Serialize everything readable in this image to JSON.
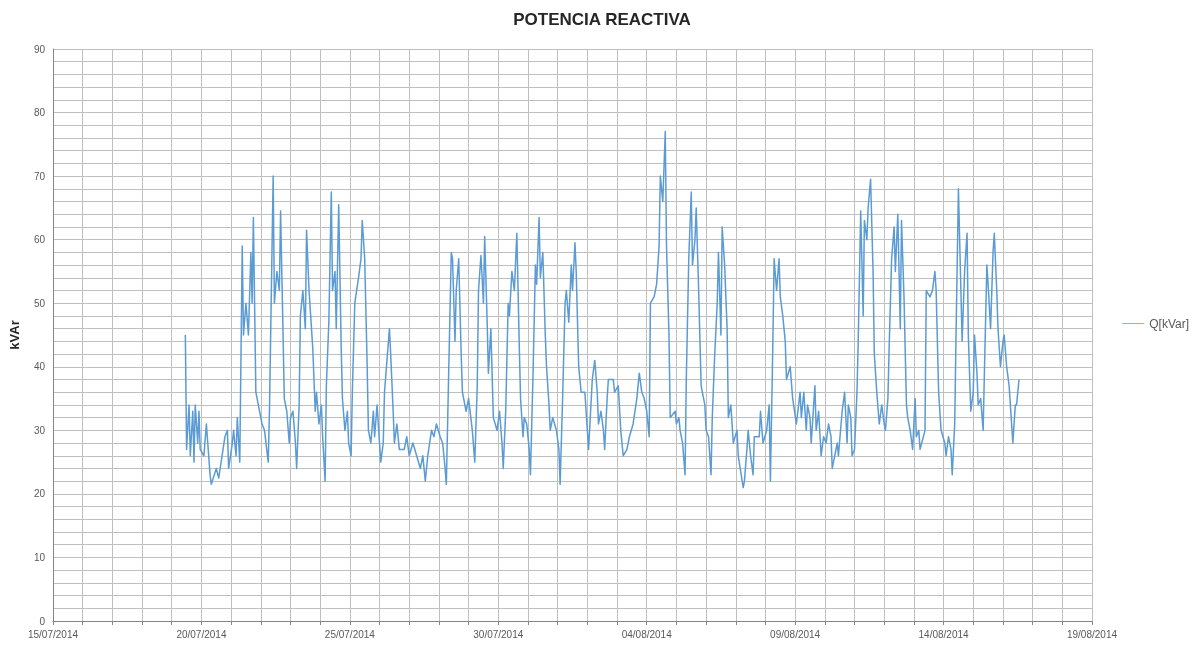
{
  "chart_data": {
    "type": "line",
    "title": "POTENCIA REACTIVA",
    "ylabel": "kVAr",
    "legend": "right",
    "grid": true,
    "marker": "none",
    "line_style": "solid",
    "xlim": [
      "2014-07-15",
      "2014-08-19"
    ],
    "xticks": [
      {
        "value": "2014-07-15",
        "label": "15/07/2014"
      },
      {
        "value": "2014-07-16",
        "label": null
      },
      {
        "value": "2014-07-17",
        "label": null
      },
      {
        "value": "2014-07-18",
        "label": null
      },
      {
        "value": "2014-07-19",
        "label": null
      },
      {
        "value": "2014-07-20",
        "label": "20/07/2014"
      },
      {
        "value": "2014-07-21",
        "label": null
      },
      {
        "value": "2014-07-22",
        "label": null
      },
      {
        "value": "2014-07-23",
        "label": null
      },
      {
        "value": "2014-07-24",
        "label": null
      },
      {
        "value": "2014-07-25",
        "label": "25/07/2014"
      },
      {
        "value": "2014-07-26",
        "label": null
      },
      {
        "value": "2014-07-27",
        "label": null
      },
      {
        "value": "2014-07-28",
        "label": null
      },
      {
        "value": "2014-07-29",
        "label": null
      },
      {
        "value": "2014-07-30",
        "label": "30/07/2014"
      },
      {
        "value": "2014-07-31",
        "label": null
      },
      {
        "value": "2014-08-01",
        "label": null
      },
      {
        "value": "2014-08-02",
        "label": null
      },
      {
        "value": "2014-08-03",
        "label": null
      },
      {
        "value": "2014-08-04",
        "label": "04/08/2014"
      },
      {
        "value": "2014-08-05",
        "label": null
      },
      {
        "value": "2014-08-06",
        "label": null
      },
      {
        "value": "2014-08-07",
        "label": null
      },
      {
        "value": "2014-08-08",
        "label": null
      },
      {
        "value": "2014-08-09",
        "label": "09/08/2014"
      },
      {
        "value": "2014-08-10",
        "label": null
      },
      {
        "value": "2014-08-11",
        "label": null
      },
      {
        "value": "2014-08-12",
        "label": null
      },
      {
        "value": "2014-08-13",
        "label": null
      },
      {
        "value": "2014-08-14",
        "label": "14/08/2014"
      },
      {
        "value": "2014-08-15",
        "label": null
      },
      {
        "value": "2014-08-16",
        "label": null
      },
      {
        "value": "2014-08-17",
        "label": null
      },
      {
        "value": "2014-08-18",
        "label": null
      },
      {
        "value": "2014-08-19",
        "label": "19/08/2014"
      }
    ],
    "ylim": [
      0,
      90
    ],
    "yticks": [
      0,
      {
        "value": 2,
        "label": null
      },
      {
        "value": 4,
        "label": null
      },
      {
        "value": 6,
        "label": null
      },
      {
        "value": 8,
        "label": null
      },
      10,
      {
        "value": 12,
        "label": null
      },
      {
        "value": 14,
        "label": null
      },
      {
        "value": 16,
        "label": null
      },
      {
        "value": 18,
        "label": null
      },
      20,
      {
        "value": 22,
        "label": null
      },
      {
        "value": 24,
        "label": null
      },
      {
        "value": 26,
        "label": null
      },
      {
        "value": 28,
        "label": null
      },
      30,
      {
        "value": 32,
        "label": null
      },
      {
        "value": 34,
        "label": null
      },
      {
        "value": 36,
        "label": null
      },
      {
        "value": 38,
        "label": null
      },
      40,
      {
        "value": 42,
        "label": null
      },
      {
        "value": 44,
        "label": null
      },
      {
        "value": 46,
        "label": null
      },
      {
        "value": 48,
        "label": null
      },
      50,
      {
        "value": 52,
        "label": null
      },
      {
        "value": 54,
        "label": null
      },
      {
        "value": 56,
        "label": null
      },
      {
        "value": 58,
        "label": null
      },
      60,
      {
        "value": 62,
        "label": null
      },
      {
        "value": 64,
        "label": null
      },
      {
        "value": 66,
        "label": null
      },
      {
        "value": 68,
        "label": null
      },
      70,
      {
        "value": 72,
        "label": null
      },
      {
        "value": 74,
        "label": null
      },
      {
        "value": 76,
        "label": null
      },
      {
        "value": 78,
        "label": null
      },
      80,
      {
        "value": 82,
        "label": null
      },
      {
        "value": 84,
        "label": null
      },
      {
        "value": 86,
        "label": null
      },
      {
        "value": 88,
        "label": null
      },
      90
    ],
    "series": [
      {
        "name": "Q[kVar]",
        "color": "#5b9bd5",
        "x": [
          "2014-07-19T11:00",
          "2014-07-19T12:00",
          "2014-07-19T14:00",
          "2014-07-19T15:00",
          "2014-07-19T17:00",
          "2014-07-19T18:00",
          "2014-07-19T19:00",
          "2014-07-19T21:00",
          "2014-07-19T22:00",
          "2014-07-19T23:00",
          "2014-07-20T02:00",
          "2014-07-20T04:00",
          "2014-07-20T07:00",
          "2014-07-20T08:00",
          "2014-07-20T12:00",
          "2014-07-20T14:00",
          "2014-07-20T19:00",
          "2014-07-20T21:00",
          "2014-07-20T22:00",
          "2014-07-21T01:00",
          "2014-07-21T02:00",
          "2014-07-21T04:00",
          "2014-07-21T05:00",
          "2014-07-21T07:00",
          "2014-07-21T09:00",
          "2014-07-21T10:00",
          "2014-07-21T12:00",
          "2014-07-21T14:00",
          "2014-07-21T16:00",
          "2014-07-21T17:00",
          "2014-07-21T18:00",
          "2014-07-21T20:00",
          "2014-07-21T22:00",
          "2014-07-22T01:00",
          "2014-07-22T03:00",
          "2014-07-22T06:00",
          "2014-07-22T07:00",
          "2014-07-22T10:00",
          "2014-07-22T11:00",
          "2014-07-22T13:00",
          "2014-07-22T15:00",
          "2014-07-22T16:00",
          "2014-07-22T18:00",
          "2014-07-22T19:00",
          "2014-07-22T21:00",
          "2014-07-22T23:00",
          "2014-07-23T00:00",
          "2014-07-23T02:00",
          "2014-07-23T04:00",
          "2014-07-23T05:00",
          "2014-07-23T07:00",
          "2014-07-23T08:00",
          "2014-07-23T10:00",
          "2014-07-23T12:00",
          "2014-07-23T13:00",
          "2014-07-23T15:00",
          "2014-07-23T18:00",
          "2014-07-23T20:00",
          "2014-07-23T21:00",
          "2014-07-23T23:00",
          "2014-07-24T01:00",
          "2014-07-24T02:00",
          "2014-07-24T04:00",
          "2014-07-24T05:00",
          "2014-07-24T07:00",
          "2014-07-24T09:00",
          "2014-07-24T10:00",
          "2014-07-24T12:00",
          "2014-07-24T13:00",
          "2014-07-24T15:00",
          "2014-07-24T17:00",
          "2014-07-24T18:00",
          "2014-07-24T20:00",
          "2014-07-24T22:00",
          "2014-07-24T23:00",
          "2014-07-25T01:00",
          "2014-07-25T02:00",
          "2014-07-25T04:00",
          "2014-07-25T07:00",
          "2014-07-25T09:00",
          "2014-07-25T10:00",
          "2014-07-25T12:00",
          "2014-07-25T14:00",
          "2014-07-25T15:00",
          "2014-07-25T17:00",
          "2014-07-25T19:00",
          "2014-07-25T20:00",
          "2014-07-25T22:00",
          "2014-07-26T01:00",
          "2014-07-26T03:00",
          "2014-07-26T04:00",
          "2014-07-26T08:00",
          "2014-07-26T09:00",
          "2014-07-26T11:00",
          "2014-07-26T12:00",
          "2014-07-26T14:00",
          "2014-07-26T16:00",
          "2014-07-26T20:00",
          "2014-07-26T22:00",
          "2014-07-27T00:00",
          "2014-07-27T03:00",
          "2014-07-27T06:00",
          "2014-07-27T09:00",
          "2014-07-27T11:00",
          "2014-07-27T13:00",
          "2014-07-27T15:00",
          "2014-07-27T18:00",
          "2014-07-27T20:00",
          "2014-07-27T22:00",
          "2014-07-28T01:00",
          "2014-07-28T03:00",
          "2014-07-28T05:00",
          "2014-07-28T06:00",
          "2014-07-28T08:00",
          "2014-07-28T10:00",
          "2014-07-28T11:00",
          "2014-07-28T13:00",
          "2014-07-28T14:00",
          "2014-07-28T16:00",
          "2014-07-28T18:00",
          "2014-07-28T19:00",
          "2014-07-28T22:00",
          "2014-07-29T00:00",
          "2014-07-29T03:00",
          "2014-07-29T05:00",
          "2014-07-29T07:00",
          "2014-07-29T08:00",
          "2014-07-29T10:00",
          "2014-07-29T12:00",
          "2014-07-29T13:00",
          "2014-07-29T15:00",
          "2014-07-29T16:00",
          "2014-07-29T18:00",
          "2014-07-29T20:00",
          "2014-07-29T23:00",
          "2014-07-30T01:00",
          "2014-07-30T03:00",
          "2014-07-30T04:00",
          "2014-07-30T06:00",
          "2014-07-30T08:00",
          "2014-07-30T09:00",
          "2014-07-30T11:00",
          "2014-07-30T13:00",
          "2014-07-30T15:00",
          "2014-07-30T17:00",
          "2014-07-30T18:00",
          "2014-07-30T20:00",
          "2014-07-30T21:00",
          "2014-07-30T23:00",
          "2014-07-31T01:00",
          "2014-07-31T02:00",
          "2014-07-31T04:00",
          "2014-07-31T06:00",
          "2014-07-31T07:00",
          "2014-07-31T09:00",
          "2014-07-31T10:00",
          "2014-07-31T12:00",
          "2014-07-31T14:00",
          "2014-07-31T15:00",
          "2014-07-31T17:00",
          "2014-07-31T18:00",
          "2014-07-31T20:00",
          "2014-07-31T23:00",
          "2014-08-01T01:00",
          "2014-08-01T02:00",
          "2014-08-01T04:00",
          "2014-08-01T06:00",
          "2014-08-01T07:00",
          "2014-08-01T09:00",
          "2014-08-01T11:00",
          "2014-08-01T12:00",
          "2014-08-01T14:00",
          "2014-08-01T15:00",
          "2014-08-01T17:00",
          "2014-08-01T19:00",
          "2014-08-01T22:00",
          "2014-08-02T00:00",
          "2014-08-02T01:00",
          "2014-08-02T04:00",
          "2014-08-02T06:00",
          "2014-08-02T08:00",
          "2014-08-02T09:00",
          "2014-08-02T11:00",
          "2014-08-02T13:00",
          "2014-08-02T14:00",
          "2014-08-02T16:00",
          "2014-08-02T17:00",
          "2014-08-02T21:00",
          "2014-08-02T22:00",
          "2014-08-03T01:00",
          "2014-08-03T03:00",
          "2014-08-03T05:00",
          "2014-08-03T08:00",
          "2014-08-03T10:00",
          "2014-08-03T13:00",
          "2014-08-03T16:00",
          "2014-08-03T18:00",
          "2014-08-03T20:00",
          "2014-08-03T22:00",
          "2014-08-04T00:00",
          "2014-08-04T02:00",
          "2014-08-04T03:00",
          "2014-08-04T06:00",
          "2014-08-04T08:00",
          "2014-08-04T10:00",
          "2014-08-04T11:00",
          "2014-08-04T13:00",
          "2014-08-04T15:00",
          "2014-08-04T16:00",
          "2014-08-04T18:00",
          "2014-08-04T19:00",
          "2014-08-04T23:00",
          "2014-08-05T00:00",
          "2014-08-05T02:00",
          "2014-08-05T03:00",
          "2014-08-05T05:00",
          "2014-08-05T07:00",
          "2014-08-05T08:00",
          "2014-08-05T10:00",
          "2014-08-05T12:00",
          "2014-08-05T13:00",
          "2014-08-05T15:00",
          "2014-08-05T16:00",
          "2014-08-05T18:00",
          "2014-08-05T20:00",
          "2014-08-05T23:00",
          "2014-08-06T00:00",
          "2014-08-06T02:00",
          "2014-08-06T04:00",
          "2014-08-06T05:00",
          "2014-08-06T07:00",
          "2014-08-06T09:00",
          "2014-08-06T10:00",
          "2014-08-06T12:00",
          "2014-08-06T13:00",
          "2014-08-06T15:00",
          "2014-08-06T17:00",
          "2014-08-06T18:00",
          "2014-08-06T20:00",
          "2014-08-06T22:00",
          "2014-08-07T01:00",
          "2014-08-07T02:00",
          "2014-08-07T06:00",
          "2014-08-07T07:00",
          "2014-08-07T09:00",
          "2014-08-07T10:00",
          "2014-08-07T12:00",
          "2014-08-07T14:00",
          "2014-08-07T15:00",
          "2014-08-07T19:00",
          "2014-08-07T20:00",
          "2014-08-07T22:00",
          "2014-08-08T01:00",
          "2014-08-08T03:00",
          "2014-08-08T04:00",
          "2014-08-08T06:00",
          "2014-08-08T07:00",
          "2014-08-08T09:00",
          "2014-08-08T11:00",
          "2014-08-08T12:00",
          "2014-08-08T14:00",
          "2014-08-08T16:00",
          "2014-08-08T17:00",
          "2014-08-08T20:00",
          "2014-08-08T22:00",
          "2014-08-09T01:00",
          "2014-08-09T04:00",
          "2014-08-09T05:00",
          "2014-08-09T07:00",
          "2014-08-09T09:00",
          "2014-08-09T10:00",
          "2014-08-09T12:00",
          "2014-08-09T13:00",
          "2014-08-09T16:00",
          "2014-08-09T17:00",
          "2014-08-09T19:00",
          "2014-08-09T21:00",
          "2014-08-09T23:00",
          "2014-08-10T01:00",
          "2014-08-10T03:00",
          "2014-08-10T05:00",
          "2014-08-10T06:00",
          "2014-08-10T10:00",
          "2014-08-10T11:00",
          "2014-08-10T14:00",
          "2014-08-10T16:00",
          "2014-08-10T18:00",
          "2014-08-10T19:00",
          "2014-08-10T21:00",
          "2014-08-10T22:00",
          "2014-08-11T00:00",
          "2014-08-11T02:00",
          "2014-08-11T03:00",
          "2014-08-11T05:00",
          "2014-08-11T07:00",
          "2014-08-11T08:00",
          "2014-08-11T10:00",
          "2014-08-11T11:00",
          "2014-08-11T13:00",
          "2014-08-11T15:00",
          "2014-08-11T16:00",
          "2014-08-11T18:00",
          "2014-08-11T20:00",
          "2014-08-11T22:00",
          "2014-08-12T00:00",
          "2014-08-12T01:00",
          "2014-08-12T03:00",
          "2014-08-12T04:00",
          "2014-08-12T06:00",
          "2014-08-12T08:00",
          "2014-08-12T09:00",
          "2014-08-12T11:00",
          "2014-08-12T13:00",
          "2014-08-12T14:00",
          "2014-08-12T16:00",
          "2014-08-12T18:00",
          "2014-08-12T19:00",
          "2014-08-12T21:00",
          "2014-08-12T23:00",
          "2014-08-13T01:00",
          "2014-08-13T02:00",
          "2014-08-13T04:00",
          "2014-08-13T05:00",
          "2014-08-13T09:00",
          "2014-08-13T10:00",
          "2014-08-13T13:00",
          "2014-08-13T15:00",
          "2014-08-13T17:00",
          "2014-08-13T18:00",
          "2014-08-13T20:00",
          "2014-08-13T22:00",
          "2014-08-14T01:00",
          "2014-08-14T02:00",
          "2014-08-14T04:00",
          "2014-08-14T06:00",
          "2014-08-14T07:00",
          "2014-08-14T09:00",
          "2014-08-14T10:00",
          "2014-08-14T12:00",
          "2014-08-14T14:00",
          "2014-08-14T15:00",
          "2014-08-14T17:00",
          "2014-08-14T19:00",
          "2014-08-14T20:00",
          "2014-08-14T22:00",
          "2014-08-15T00:00",
          "2014-08-15T01:00",
          "2014-08-15T03:00",
          "2014-08-15T04:00",
          "2014-08-15T06:00",
          "2014-08-15T08:00",
          "2014-08-15T09:00",
          "2014-08-15T11:00",
          "2014-08-15T12:00",
          "2014-08-15T14:00",
          "2014-08-15T16:00",
          "2014-08-15T17:00",
          "2014-08-15T19:00",
          "2014-08-15T20:00",
          "2014-08-15T22:00",
          "2014-08-16T00:00",
          "2014-08-16T01:00",
          "2014-08-16T03:00",
          "2014-08-16T05:00",
          "2014-08-16T06:00",
          "2014-08-16T08:00",
          "2014-08-16T10:00",
          "2014-08-16T11:00",
          "2014-08-16T13:00"
        ],
        "values": [
          45,
          27,
          34,
          26,
          33,
          25,
          34,
          28,
          33,
          27,
          26,
          31,
          23,
          21.5,
          24,
          22.5,
          29,
          30,
          24,
          28,
          30,
          26,
          32,
          25,
          59,
          45,
          50,
          45,
          58,
          50,
          63.5,
          36,
          34,
          31,
          30,
          25,
          33,
          70,
          50,
          55,
          52,
          64.5,
          45,
          35,
          33,
          28,
          32,
          33,
          28,
          24,
          34,
          48,
          52,
          46,
          61.5,
          52,
          43,
          33,
          36,
          31,
          34,
          29,
          22,
          37,
          47,
          67.5,
          52,
          55,
          46,
          65.5,
          43,
          35,
          30,
          33,
          28,
          26,
          36,
          50,
          54,
          57,
          63,
          57,
          40,
          30,
          28,
          33,
          29,
          34,
          25,
          28,
          36,
          46,
          42,
          33,
          28,
          31,
          27,
          27,
          29,
          26,
          28,
          26,
          24,
          26,
          22,
          26,
          30,
          29,
          31,
          29,
          28,
          24,
          21.5,
          40,
          58,
          57,
          44,
          52,
          57,
          42,
          36,
          33,
          35,
          30,
          25,
          37,
          52,
          57.5,
          50,
          60.5,
          47,
          39,
          46,
          32,
          30,
          33,
          28,
          24,
          33,
          50,
          48,
          55,
          52,
          61,
          43,
          35,
          29,
          32,
          31,
          27,
          23,
          38,
          56,
          53,
          63.5,
          54,
          58,
          45,
          40,
          34,
          30,
          32,
          30,
          27,
          21.5,
          35,
          50,
          52,
          47,
          56,
          52,
          59.5,
          55,
          40,
          36,
          36,
          30,
          27,
          38,
          41,
          36,
          31,
          33,
          30,
          27,
          35,
          38,
          38,
          36,
          37,
          30,
          26,
          27,
          29,
          31,
          35,
          39,
          36,
          35,
          33,
          29,
          50,
          51,
          53,
          59,
          70,
          66,
          77,
          59,
          45,
          32,
          33,
          31,
          32,
          30,
          28,
          23,
          38,
          57,
          67.5,
          56,
          60,
          65,
          52,
          37,
          34,
          30,
          29,
          23,
          32,
          42,
          50,
          58,
          45,
          62,
          56,
          46,
          32,
          34,
          28,
          30,
          26,
          21,
          22,
          27,
          30,
          26,
          23,
          29,
          29,
          33,
          28,
          30,
          34,
          22,
          44,
          57,
          52,
          57,
          51,
          48,
          44,
          38,
          40,
          35,
          31,
          36,
          32,
          36,
          30,
          34,
          32,
          28,
          37,
          30,
          33,
          26,
          29,
          28,
          31,
          29,
          24,
          28,
          26,
          33,
          36,
          28,
          34,
          32,
          26,
          27,
          36,
          44,
          64.5,
          48,
          63,
          60,
          65,
          69.5,
          55,
          42,
          36,
          31,
          34,
          31,
          30,
          35,
          43,
          57,
          62,
          55,
          64,
          46,
          63,
          51,
          34,
          32,
          30,
          27,
          35,
          29,
          30,
          27,
          30,
          52,
          51,
          52,
          55,
          52,
          36,
          30,
          28,
          26,
          29,
          27,
          23,
          31,
          44,
          68,
          52,
          44,
          55,
          61,
          45,
          33,
          36,
          45,
          39,
          34,
          35,
          30,
          39,
          56,
          53,
          46,
          58,
          61,
          52,
          46,
          40,
          44,
          45,
          40,
          37,
          34,
          28,
          34,
          34,
          38
        ]
      }
    ]
  }
}
